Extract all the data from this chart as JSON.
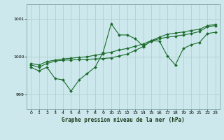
{
  "title": "Graphe pression niveau de la mer (hPa)",
  "bg_color": "#cce8ec",
  "grid_color": "#aacccc",
  "line_color": "#1a6b2a",
  "xlim": [
    -0.5,
    23.5
  ],
  "ylim": [
    998.6,
    1001.4
  ],
  "yticks": [
    999,
    1000,
    1001
  ],
  "xticks": [
    0,
    1,
    2,
    3,
    4,
    5,
    6,
    7,
    8,
    9,
    10,
    11,
    12,
    13,
    14,
    15,
    16,
    17,
    18,
    19,
    20,
    21,
    22,
    23
  ],
  "series": [
    [
      999.72,
      999.62,
      999.72,
      999.42,
      999.38,
      999.08,
      999.38,
      999.55,
      999.72,
      1000.12,
      1000.88,
      1000.58,
      1000.58,
      1000.48,
      1000.28,
      1000.42,
      1000.42,
      1000.02,
      999.78,
      1000.22,
      1000.32,
      1000.38,
      1000.62,
      1000.65
    ],
    [
      999.78,
      999.72,
      999.82,
      999.88,
      999.91,
      999.91,
      999.93,
      999.93,
      999.94,
      999.95,
      999.97,
      1000.02,
      1000.07,
      1000.17,
      1000.27,
      1000.42,
      1000.48,
      1000.52,
      1000.55,
      1000.58,
      1000.62,
      1000.67,
      1000.8,
      1000.83
    ],
    [
      999.82,
      999.78,
      999.87,
      999.91,
      999.94,
      999.96,
      999.98,
      1000.0,
      1000.04,
      1000.08,
      1000.12,
      1000.18,
      1000.22,
      1000.28,
      1000.34,
      1000.43,
      1000.52,
      1000.6,
      1000.63,
      1000.66,
      1000.7,
      1000.73,
      1000.83,
      1000.86
    ]
  ]
}
